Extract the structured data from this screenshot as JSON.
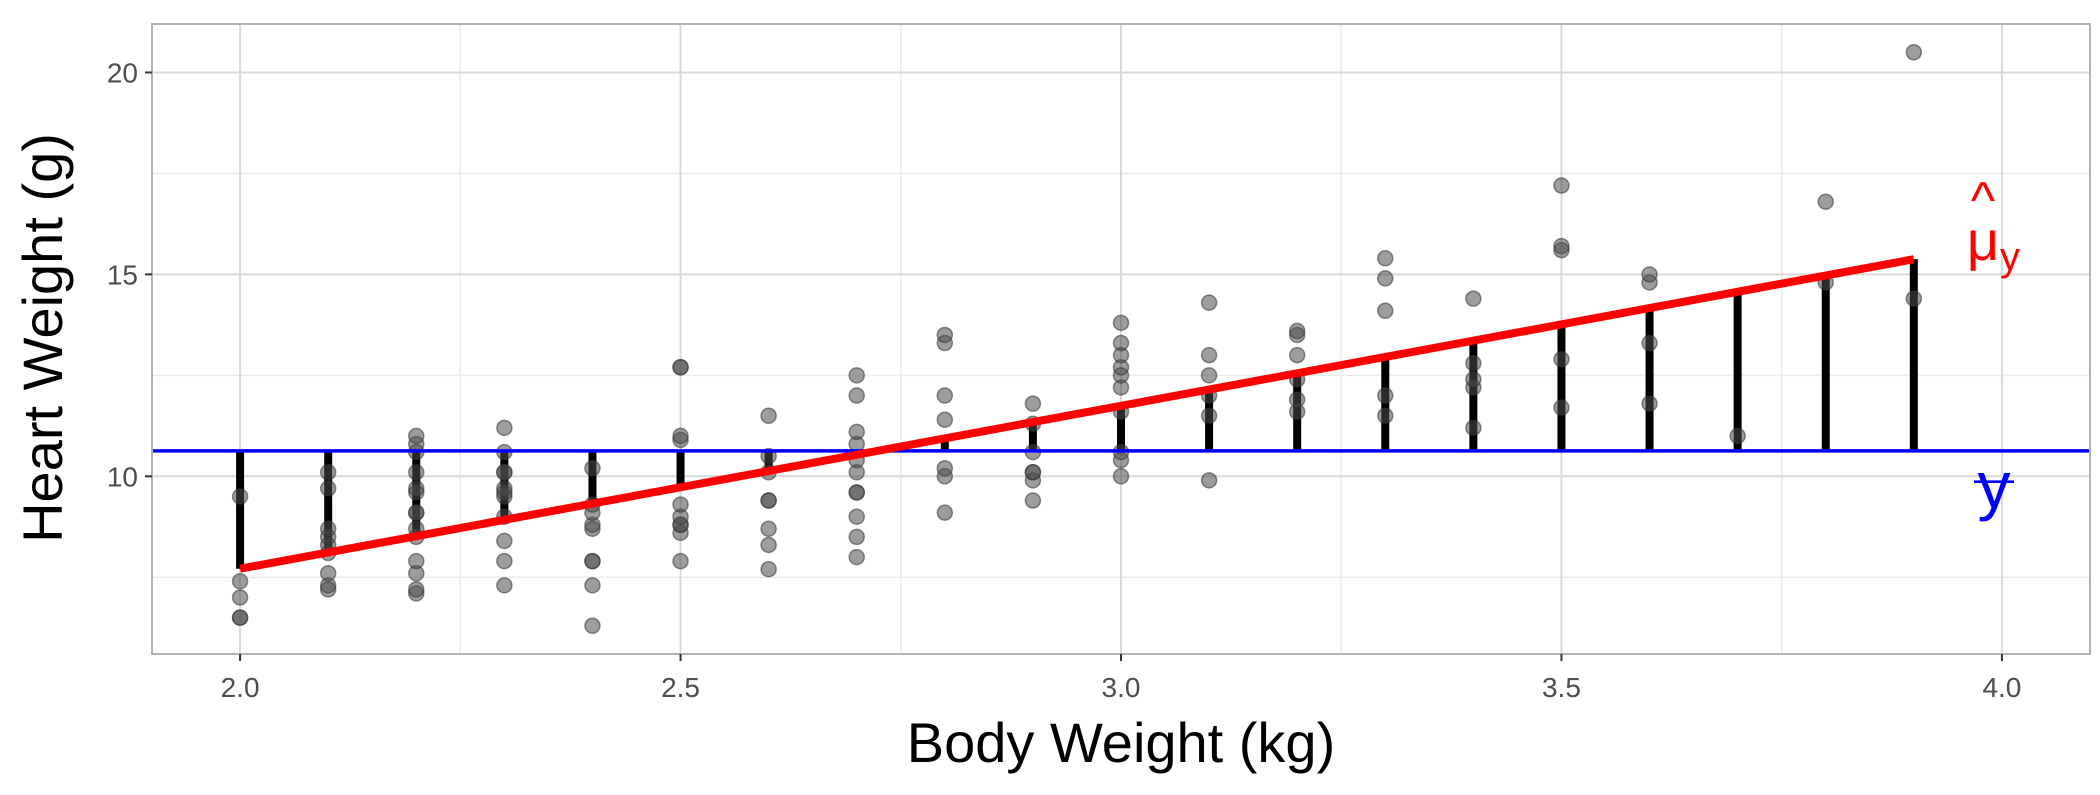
{
  "chart_data": {
    "type": "scatter",
    "xlabel": "Body Weight (kg)",
    "ylabel": "Heart Weight (g)",
    "xlim": [
      1.9,
      4.1
    ],
    "ylim": [
      5.6,
      21.2
    ],
    "x_ticks": [
      2.0,
      2.5,
      3.0,
      3.5,
      4.0
    ],
    "x_tick_labels": [
      "2.0",
      "2.5",
      "3.0",
      "3.5",
      "4.0"
    ],
    "y_ticks": [
      10,
      15,
      20
    ],
    "y_tick_labels": [
      "10",
      "15",
      "20"
    ],
    "grid": true,
    "mean_y": 10.63,
    "regression": {
      "intercept": -0.3567,
      "slope": 4.0341,
      "x_range": [
        2.0,
        3.9
      ]
    },
    "annotations": [
      {
        "label": "μ̂y",
        "text": "μ",
        "hat": "^",
        "subscript": "y",
        "color": "#ff0000"
      },
      {
        "label": "y̅",
        "text": "y",
        "bar": "—",
        "color": "#0000ff"
      }
    ],
    "colors": {
      "points": "#4d4d4d",
      "regression": "#ff0000",
      "mean": "#0000ff",
      "segments": "#000000"
    },
    "points": [
      [
        2.0,
        7.0
      ],
      [
        2.0,
        7.4
      ],
      [
        2.0,
        9.5
      ],
      [
        2.0,
        6.5
      ],
      [
        2.0,
        6.5
      ],
      [
        2.1,
        7.2
      ],
      [
        2.1,
        7.3
      ],
      [
        2.1,
        7.6
      ],
      [
        2.1,
        8.1
      ],
      [
        2.1,
        8.3
      ],
      [
        2.1,
        8.5
      ],
      [
        2.1,
        8.7
      ],
      [
        2.1,
        9.7
      ],
      [
        2.1,
        10.1
      ],
      [
        2.2,
        7.1
      ],
      [
        2.2,
        7.2
      ],
      [
        2.2,
        7.6
      ],
      [
        2.2,
        7.9
      ],
      [
        2.2,
        8.5
      ],
      [
        2.2,
        8.7
      ],
      [
        2.2,
        9.1
      ],
      [
        2.2,
        9.1
      ],
      [
        2.2,
        9.6
      ],
      [
        2.2,
        9.7
      ],
      [
        2.2,
        10.1
      ],
      [
        2.2,
        10.6
      ],
      [
        2.2,
        10.8
      ],
      [
        2.2,
        11.0
      ],
      [
        2.3,
        7.3
      ],
      [
        2.3,
        7.9
      ],
      [
        2.3,
        8.4
      ],
      [
        2.3,
        9.0
      ],
      [
        2.3,
        9.5
      ],
      [
        2.3,
        9.6
      ],
      [
        2.3,
        9.7
      ],
      [
        2.3,
        10.1
      ],
      [
        2.3,
        10.1
      ],
      [
        2.3,
        10.6
      ],
      [
        2.3,
        11.2
      ],
      [
        2.4,
        6.3
      ],
      [
        2.4,
        7.3
      ],
      [
        2.4,
        7.9
      ],
      [
        2.4,
        7.9
      ],
      [
        2.4,
        8.7
      ],
      [
        2.4,
        8.8
      ],
      [
        2.4,
        9.1
      ],
      [
        2.4,
        9.3
      ],
      [
        2.4,
        10.2
      ],
      [
        2.5,
        7.9
      ],
      [
        2.5,
        8.6
      ],
      [
        2.5,
        8.8
      ],
      [
        2.5,
        8.8
      ],
      [
        2.5,
        9.0
      ],
      [
        2.5,
        9.3
      ],
      [
        2.5,
        10.9
      ],
      [
        2.5,
        11.0
      ],
      [
        2.5,
        12.7
      ],
      [
        2.5,
        12.7
      ],
      [
        2.6,
        7.7
      ],
      [
        2.6,
        8.3
      ],
      [
        2.6,
        8.7
      ],
      [
        2.6,
        9.4
      ],
      [
        2.6,
        9.4
      ],
      [
        2.6,
        10.1
      ],
      [
        2.6,
        10.5
      ],
      [
        2.6,
        11.5
      ],
      [
        2.7,
        8.0
      ],
      [
        2.7,
        8.5
      ],
      [
        2.7,
        9.0
      ],
      [
        2.7,
        9.6
      ],
      [
        2.7,
        9.6
      ],
      [
        2.7,
        10.1
      ],
      [
        2.7,
        10.4
      ],
      [
        2.7,
        10.8
      ],
      [
        2.7,
        11.1
      ],
      [
        2.7,
        12.0
      ],
      [
        2.7,
        12.5
      ],
      [
        2.8,
        9.1
      ],
      [
        2.8,
        10.0
      ],
      [
        2.8,
        10.2
      ],
      [
        2.8,
        11.4
      ],
      [
        2.8,
        12.0
      ],
      [
        2.8,
        13.3
      ],
      [
        2.8,
        13.5
      ],
      [
        2.9,
        9.4
      ],
      [
        2.9,
        9.9
      ],
      [
        2.9,
        10.1
      ],
      [
        2.9,
        10.1
      ],
      [
        2.9,
        10.6
      ],
      [
        2.9,
        11.3
      ],
      [
        2.9,
        11.8
      ],
      [
        3.0,
        10.0
      ],
      [
        3.0,
        10.4
      ],
      [
        3.0,
        10.6
      ],
      [
        3.0,
        11.6
      ],
      [
        3.0,
        12.2
      ],
      [
        3.0,
        12.5
      ],
      [
        3.0,
        12.7
      ],
      [
        3.0,
        13.0
      ],
      [
        3.0,
        13.3
      ],
      [
        3.0,
        13.8
      ],
      [
        3.1,
        9.9
      ],
      [
        3.1,
        11.5
      ],
      [
        3.1,
        12.0
      ],
      [
        3.1,
        12.5
      ],
      [
        3.1,
        13.0
      ],
      [
        3.1,
        14.3
      ],
      [
        3.2,
        11.6
      ],
      [
        3.2,
        11.9
      ],
      [
        3.2,
        12.4
      ],
      [
        3.2,
        13.0
      ],
      [
        3.2,
        13.5
      ],
      [
        3.2,
        13.6
      ],
      [
        3.3,
        11.5
      ],
      [
        3.3,
        12.0
      ],
      [
        3.3,
        14.1
      ],
      [
        3.3,
        14.9
      ],
      [
        3.3,
        15.4
      ],
      [
        3.4,
        11.2
      ],
      [
        3.4,
        12.2
      ],
      [
        3.4,
        12.4
      ],
      [
        3.4,
        12.8
      ],
      [
        3.4,
        14.4
      ],
      [
        3.5,
        11.7
      ],
      [
        3.5,
        12.9
      ],
      [
        3.5,
        15.6
      ],
      [
        3.5,
        15.7
      ],
      [
        3.5,
        17.2
      ],
      [
        3.6,
        11.8
      ],
      [
        3.6,
        13.3
      ],
      [
        3.6,
        14.8
      ],
      [
        3.6,
        15.0
      ],
      [
        3.7,
        11.0
      ],
      [
        3.8,
        14.8
      ],
      [
        3.8,
        16.8
      ],
      [
        3.9,
        14.4
      ],
      [
        3.9,
        20.5
      ]
    ]
  }
}
